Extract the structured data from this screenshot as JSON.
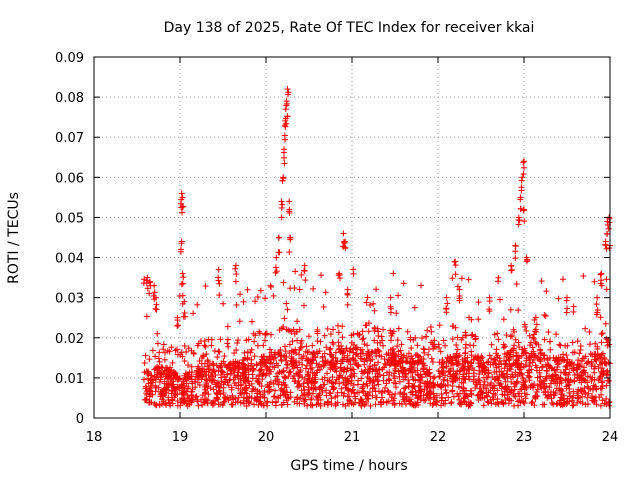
{
  "chart_data": {
    "type": "scatter",
    "title": "Day 138 of 2025, Rate Of TEC Index for receiver kkai",
    "xlabel": "GPS time / hours",
    "ylabel": "ROTI / TECUs",
    "xlim": [
      18,
      24
    ],
    "ylim": [
      0,
      0.09
    ],
    "xticks": [
      "18",
      "19",
      "20",
      "21",
      "22",
      "23",
      "24"
    ],
    "yticks": [
      "0",
      "0.01",
      "0.02",
      "0.03",
      "0.04",
      "0.05",
      "0.06",
      "0.07",
      "0.08",
      "0.09"
    ],
    "grid": true,
    "marker": "+",
    "color": "#ff0000",
    "series": [
      {
        "name": "ROTI",
        "x_range": [
          18.58,
          24.0
        ],
        "baseline": [
          [
            18.6,
            0.008
          ],
          [
            18.8,
            0.009
          ],
          [
            19.0,
            0.007
          ],
          [
            19.2,
            0.009
          ],
          [
            19.4,
            0.01
          ],
          [
            19.6,
            0.01
          ],
          [
            19.8,
            0.011
          ],
          [
            20.0,
            0.012
          ],
          [
            20.2,
            0.013
          ],
          [
            20.4,
            0.013
          ],
          [
            20.6,
            0.012
          ],
          [
            20.8,
            0.013
          ],
          [
            21.0,
            0.014
          ],
          [
            21.2,
            0.013
          ],
          [
            21.4,
            0.012
          ],
          [
            21.6,
            0.013
          ],
          [
            21.8,
            0.011
          ],
          [
            22.0,
            0.01
          ],
          [
            22.2,
            0.012
          ],
          [
            22.4,
            0.011
          ],
          [
            22.6,
            0.011
          ],
          [
            22.8,
            0.012
          ],
          [
            23.0,
            0.013
          ],
          [
            23.2,
            0.012
          ],
          [
            23.4,
            0.011
          ],
          [
            23.6,
            0.011
          ],
          [
            23.8,
            0.012
          ],
          [
            24.0,
            0.012
          ]
        ],
        "highlights": [
          [
            18.62,
            0.035
          ],
          [
            18.65,
            0.034
          ],
          [
            18.7,
            0.033
          ],
          [
            18.72,
            0.03
          ],
          [
            18.97,
            0.025
          ],
          [
            19.02,
            0.056
          ],
          [
            19.03,
            0.055
          ],
          [
            19.02,
            0.044
          ],
          [
            19.03,
            0.036
          ],
          [
            19.05,
            0.029
          ],
          [
            19.45,
            0.037
          ],
          [
            19.65,
            0.038
          ],
          [
            20.12,
            0.04
          ],
          [
            20.15,
            0.045
          ],
          [
            20.18,
            0.054
          ],
          [
            20.2,
            0.06
          ],
          [
            20.21,
            0.067
          ],
          [
            20.22,
            0.073
          ],
          [
            20.23,
            0.077
          ],
          [
            20.24,
            0.079
          ],
          [
            20.25,
            0.082
          ],
          [
            20.27,
            0.054
          ],
          [
            20.28,
            0.045
          ],
          [
            20.45,
            0.038
          ],
          [
            20.85,
            0.036
          ],
          [
            20.9,
            0.046
          ],
          [
            20.92,
            0.044
          ],
          [
            20.95,
            0.032
          ],
          [
            21.45,
            0.03
          ],
          [
            22.1,
            0.03
          ],
          [
            22.2,
            0.039
          ],
          [
            22.25,
            0.032
          ],
          [
            22.6,
            0.03
          ],
          [
            22.85,
            0.038
          ],
          [
            22.9,
            0.043
          ],
          [
            22.94,
            0.05
          ],
          [
            22.96,
            0.055
          ],
          [
            22.98,
            0.06
          ],
          [
            23.0,
            0.064
          ],
          [
            23.0,
            0.052
          ],
          [
            23.03,
            0.04
          ],
          [
            23.5,
            0.03
          ],
          [
            23.85,
            0.03
          ],
          [
            23.9,
            0.036
          ],
          [
            23.95,
            0.044
          ],
          [
            23.97,
            0.049
          ],
          [
            23.99,
            0.05
          ],
          [
            24.0,
            0.043
          ]
        ]
      }
    ]
  }
}
